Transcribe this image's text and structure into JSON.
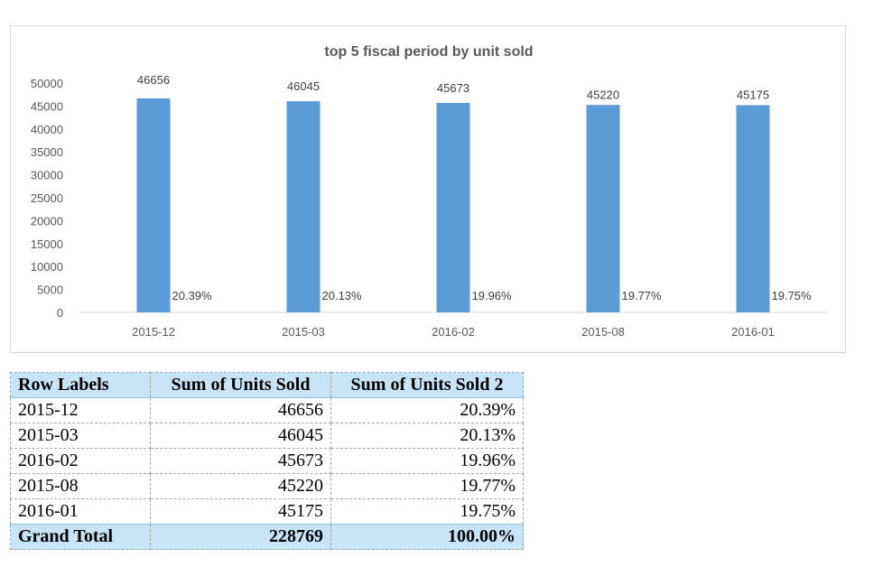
{
  "chart_data": {
    "type": "bar",
    "title": "top 5 fiscal period by unit sold",
    "categories": [
      "2015-12",
      "2015-03",
      "2016-02",
      "2015-08",
      "2016-01"
    ],
    "series": [
      {
        "values": [
          46656,
          46045,
          45673,
          45220,
          45175
        ],
        "color": "#5b9bd5"
      },
      {
        "values": [
          20.39,
          20.13,
          19.96,
          19.77,
          19.75
        ],
        "labels": [
          "20.39%",
          "20.13%",
          "19.96%",
          "19.77%",
          "19.75%"
        ]
      }
    ],
    "yticks": [
      "50000",
      "45000",
      "40000",
      "35000",
      "30000",
      "25000",
      "20000",
      "15000",
      "10000",
      "5000",
      "0"
    ],
    "ylim": [
      0,
      50000
    ],
    "xlabel": "",
    "ylabel": "",
    "grid": false,
    "legend": "none"
  },
  "table": {
    "headers": [
      "Row Labels",
      "Sum of Units Sold",
      "Sum of Units Sold 2"
    ],
    "rows": [
      [
        "2015-12",
        "46656",
        "20.39%"
      ],
      [
        "2015-03",
        "46045",
        "20.13%"
      ],
      [
        "2016-02",
        "45673",
        "19.96%"
      ],
      [
        "2015-08",
        "45220",
        "19.77%"
      ],
      [
        "2016-01",
        "45175",
        "19.75%"
      ]
    ],
    "total": [
      "Grand Total",
      "228769",
      "100.00%"
    ],
    "header_color": "#c6e4f5"
  }
}
